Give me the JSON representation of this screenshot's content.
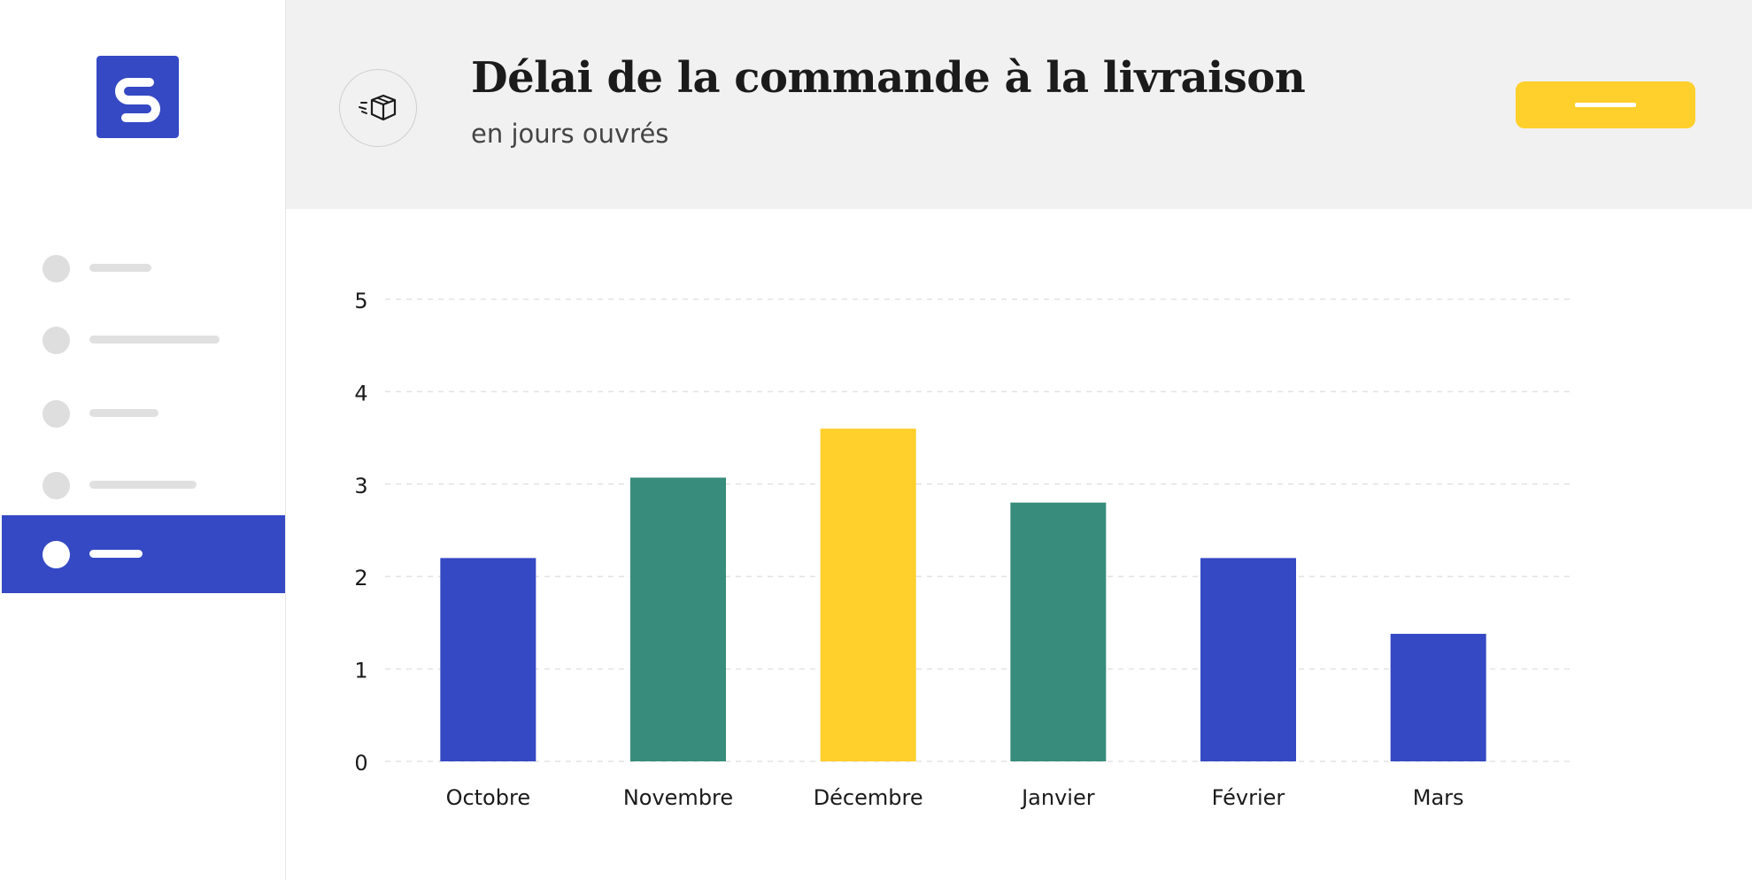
{
  "app": {
    "logo_icon": "brand-logo-icon",
    "accent_color": "#3549c4"
  },
  "sidebar": {
    "items": [
      {
        "active": false
      },
      {
        "active": false
      },
      {
        "active": false
      },
      {
        "active": false
      },
      {
        "active": true
      }
    ]
  },
  "header": {
    "icon": "delivery-box-icon",
    "title": "Délai de la commande à la livraison",
    "subtitle": "en jours ouvrés",
    "button_color": "#ffcf2b"
  },
  "chart_data": {
    "type": "bar",
    "title": "Délai de la commande à la livraison",
    "subtitle": "en jours ouvrés",
    "xlabel": "",
    "ylabel": "",
    "categories": [
      "Octobre",
      "Novembre",
      "Décembre",
      "Janvier",
      "Février",
      "Mars"
    ],
    "values": [
      2.2,
      3.07,
      3.6,
      2.8,
      2.2,
      1.38
    ],
    "colors": [
      "#3549c4",
      "#388c7c",
      "#ffcf2b",
      "#388c7c",
      "#3549c4",
      "#3549c4"
    ],
    "ylim": [
      0,
      5
    ],
    "yticks": [
      0,
      1,
      2,
      3,
      4,
      5
    ],
    "grid": true,
    "legend": "none"
  }
}
